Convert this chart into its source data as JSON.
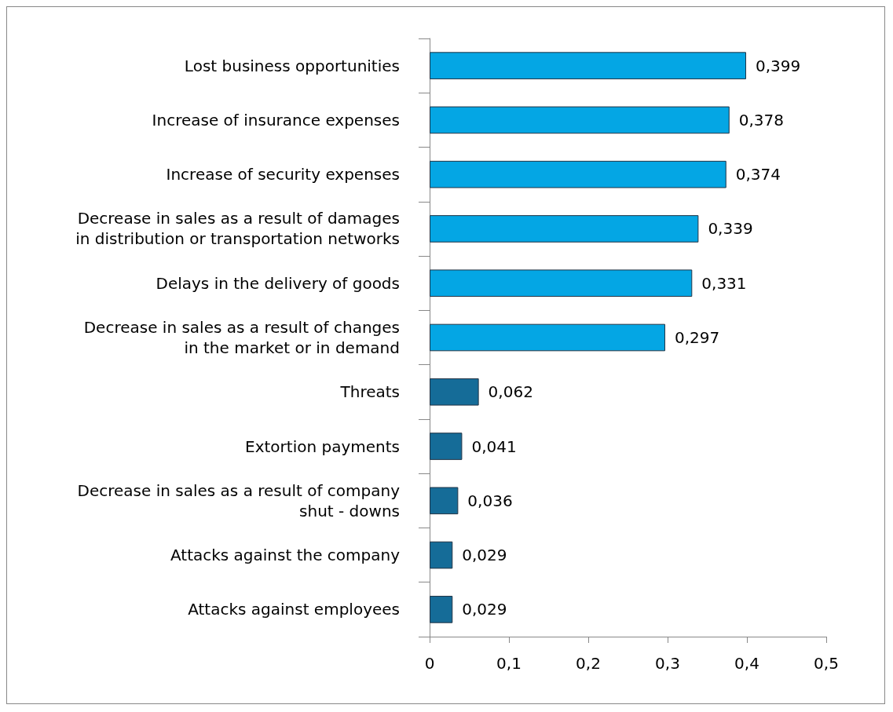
{
  "chart_data": {
    "type": "bar",
    "orientation": "horizontal",
    "categories": [
      "Lost business opportunities",
      "Increase of insurance expenses",
      "Increase of security expenses",
      "Decrease in sales as a result of damages\nin distribution or transportation networks",
      "Delays in the delivery of goods",
      "Decrease in sales as a result of changes\nin the market or in demand",
      "Threats",
      "Extortion payments",
      "Decrease in sales as a result of company\nshut - downs",
      "Attacks against the company",
      "Attacks against employees"
    ],
    "values": [
      0.399,
      0.378,
      0.374,
      0.339,
      0.331,
      0.297,
      0.062,
      0.041,
      0.036,
      0.029,
      0.029
    ],
    "value_labels": [
      "0,399",
      "0,378",
      "0,374",
      "0,339",
      "0,331",
      "0,297",
      "0,062",
      "0,041",
      "0,036",
      "0,029",
      "0,029"
    ],
    "colors": [
      "#04a6e4",
      "#04a6e4",
      "#04a6e4",
      "#04a6e4",
      "#04a6e4",
      "#04a6e4",
      "#156c98",
      "#156c98",
      "#156c98",
      "#156c98",
      "#156c98"
    ],
    "xlim": [
      0,
      0.5
    ],
    "xticks": [
      0,
      {
        "value": 0.1,
        "label": "0,1"
      },
      {
        "value": 0.2,
        "label": "0,2"
      },
      {
        "value": 0.3,
        "label": "0,3"
      },
      {
        "value": 0.4,
        "label": "0,4"
      },
      {
        "value": 0.5,
        "label": "0,5"
      }
    ],
    "grid": false
  }
}
